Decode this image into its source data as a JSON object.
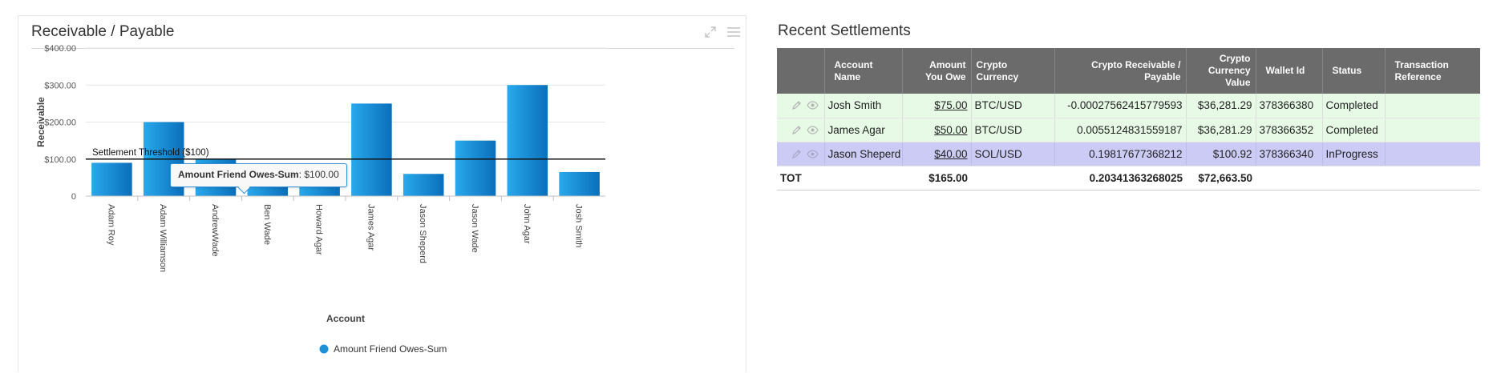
{
  "chart_panel": {
    "title": "Receivable / Payable",
    "tooltip": {
      "series": "Amount Friend Owes-Sum",
      "value": "$100.00"
    },
    "tools": [
      "expand-icon",
      "menu-icon"
    ]
  },
  "chart_data": {
    "type": "bar",
    "categories": [
      "Adam Roy",
      "Adam Williamson",
      "AndrewWade",
      "Ben Wade",
      "Howard Agar",
      "James Agar",
      "Jason Sheperd",
      "Jason Wade",
      "John Agar",
      "Josh Smith"
    ],
    "series": [
      {
        "name": "Amount Friend Owes-Sum",
        "values": [
          90,
          200,
          100,
          50,
          60,
          250,
          60,
          150,
          300,
          65
        ]
      }
    ],
    "ylabel": "Receivable",
    "xlabel": "Account",
    "ylim": [
      0,
      400
    ],
    "yticks": [
      "0",
      "$100.00",
      "$200.00",
      "$300.00",
      "$400.00"
    ],
    "ytick_values": [
      0,
      100,
      200,
      300,
      400
    ],
    "plot_line": {
      "value": 100,
      "label": "Settlement Threshold ($100)"
    },
    "legend_position": "bottom",
    "grid": true,
    "bar_color": "#1e90d6"
  },
  "table_panel": {
    "title": "Recent Settlements",
    "columns": [
      "",
      "Account Name",
      "Amount You Owe",
      "Crypto Currency",
      "Crypto Receivable / Payable",
      "Crypto Currency Value",
      "Wallet Id",
      "Status",
      "Transaction Reference"
    ],
    "rows": [
      {
        "account": "Josh Smith",
        "amount": "$75.00",
        "currency": "BTC/USD",
        "crypto": "-0.00027562415779593",
        "value": "$36,281.29",
        "wallet": "378366380",
        "status": "Completed",
        "reference": "",
        "row_color": "#e6fae6"
      },
      {
        "account": "James Agar",
        "amount": "$50.00",
        "currency": "BTC/USD",
        "crypto": "0.0055124831559187",
        "value": "$36,281.29",
        "wallet": "378366352",
        "status": "Completed",
        "reference": "",
        "row_color": "#e6fae6"
      },
      {
        "account": "Jason Sheperd",
        "amount": "$40.00",
        "currency": "SOL/USD",
        "crypto": "0.19817677368212",
        "value": "$100.92",
        "wallet": "378366340",
        "status": "InProgress",
        "reference": "",
        "row_color": "#cbcbf5"
      }
    ],
    "total": {
      "label": "TOT",
      "amount": "$165.00",
      "crypto": "0.20341363268025",
      "value": "$72,663.50"
    },
    "row_icons": [
      "pencil-icon",
      "eye-icon"
    ]
  }
}
